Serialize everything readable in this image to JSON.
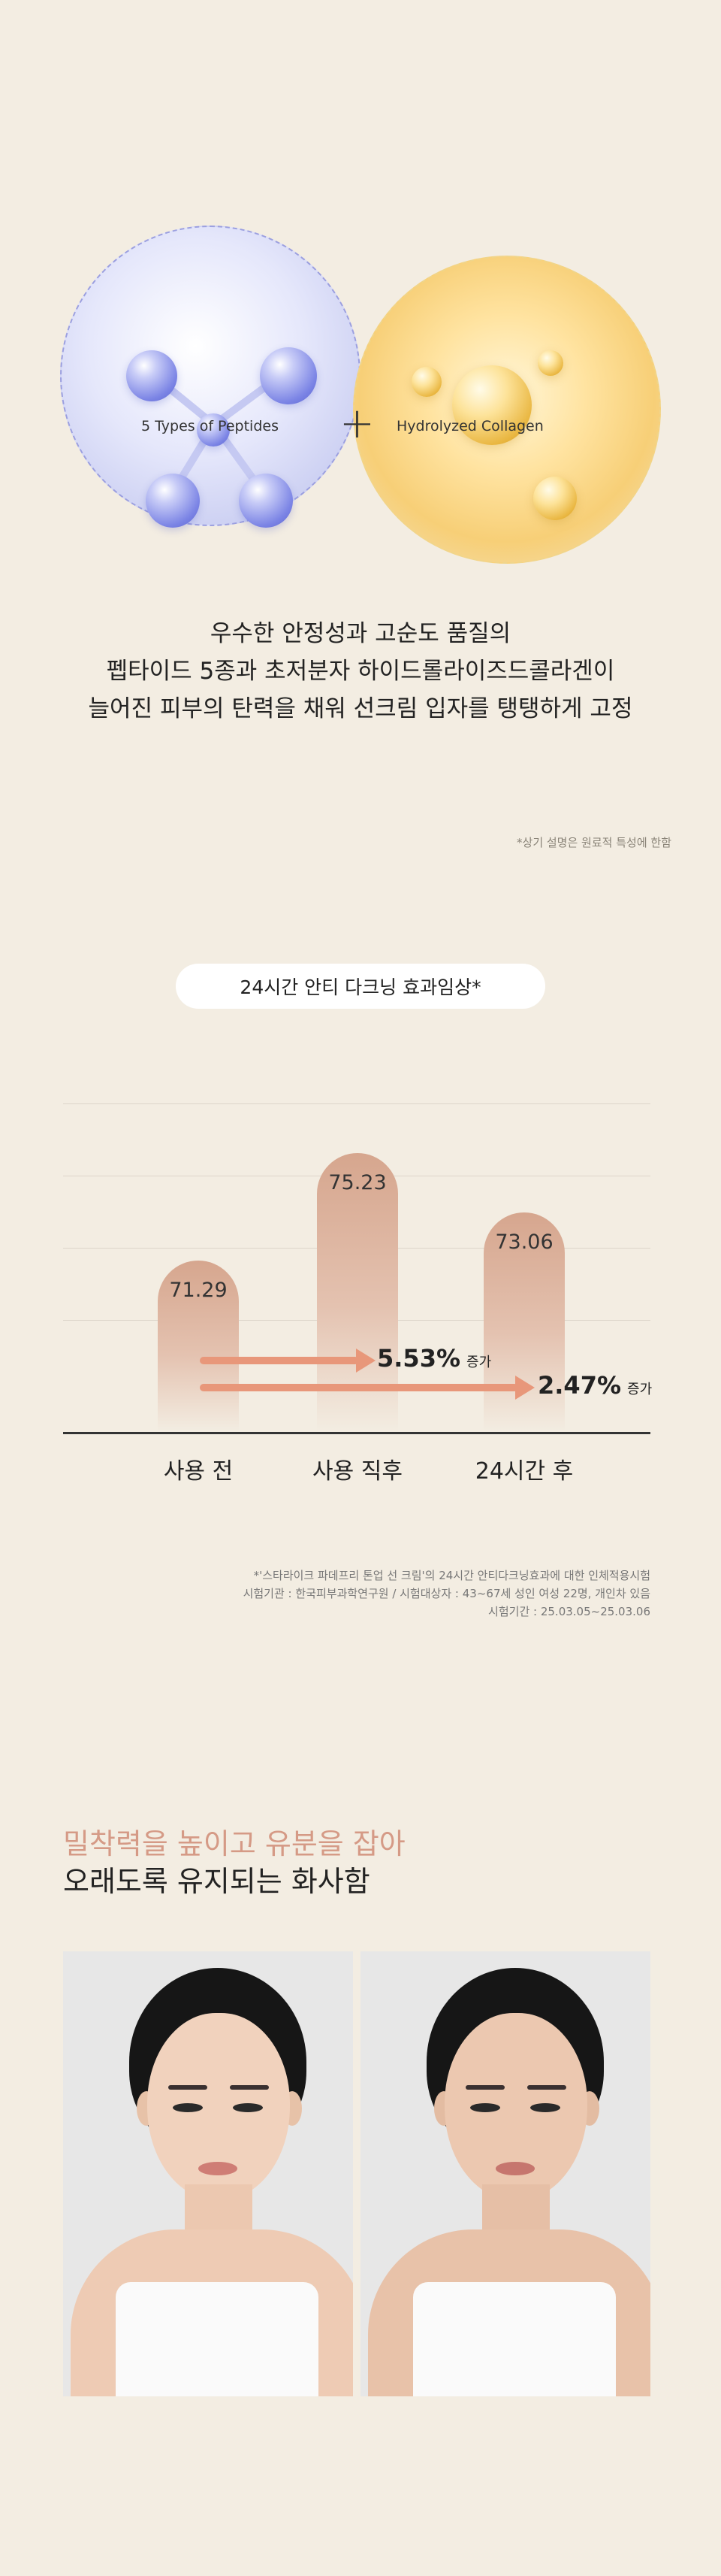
{
  "molecules": {
    "left_label": "5 Types of Peptides",
    "plus": "+",
    "right_label": "Hydrolyzed Collagen",
    "colors": {
      "peptide": "#7b84e5",
      "collagen": "#e9b640"
    }
  },
  "headline": {
    "line1": "우수한 안정성과 고순도 품질의",
    "line2": "펩타이드 5종과 초저분자 하이드롤라이즈드콜라겐이",
    "line3": "늘어진 피부의 탄력을 채워 선크림 입자를 탱탱하게 고정"
  },
  "ingredient_note": "*상기 설명은 원료적 특성에 한함",
  "chart_data": {
    "type": "bar",
    "title": "24시간 안티 다크닝 효과임상*",
    "categories": [
      "사용 전",
      "사용 직후",
      "24시간 후"
    ],
    "values": [
      71.29,
      75.23,
      73.06
    ],
    "value_labels": [
      "71.29",
      "75.23",
      "73.06"
    ],
    "annotations": [
      {
        "value": "5.53%",
        "suffix": "증가"
      },
      {
        "value": "2.47%",
        "suffix": "증가"
      }
    ],
    "ylim": [
      65,
      77
    ],
    "grid": true,
    "colors": {
      "bar": "#d6a68e",
      "arrow": "#e8977a"
    }
  },
  "footnote": {
    "line1": "*'스타라이크 파데프리 톤업 선 크림'의 24시간 안티다크닝효과에 대한 인체적용시험",
    "line2": "시험기관 : 한국피부과학연구원 / 시험대상자 : 43~67세 성인 여성 22명, 개인차 있음",
    "line3": "시험기간 : 25.03.05~25.03.06"
  },
  "section2": {
    "subtitle": "밀착력을 높이고 유분을 잡아",
    "title": "오래도록 유지되는 화사함"
  }
}
